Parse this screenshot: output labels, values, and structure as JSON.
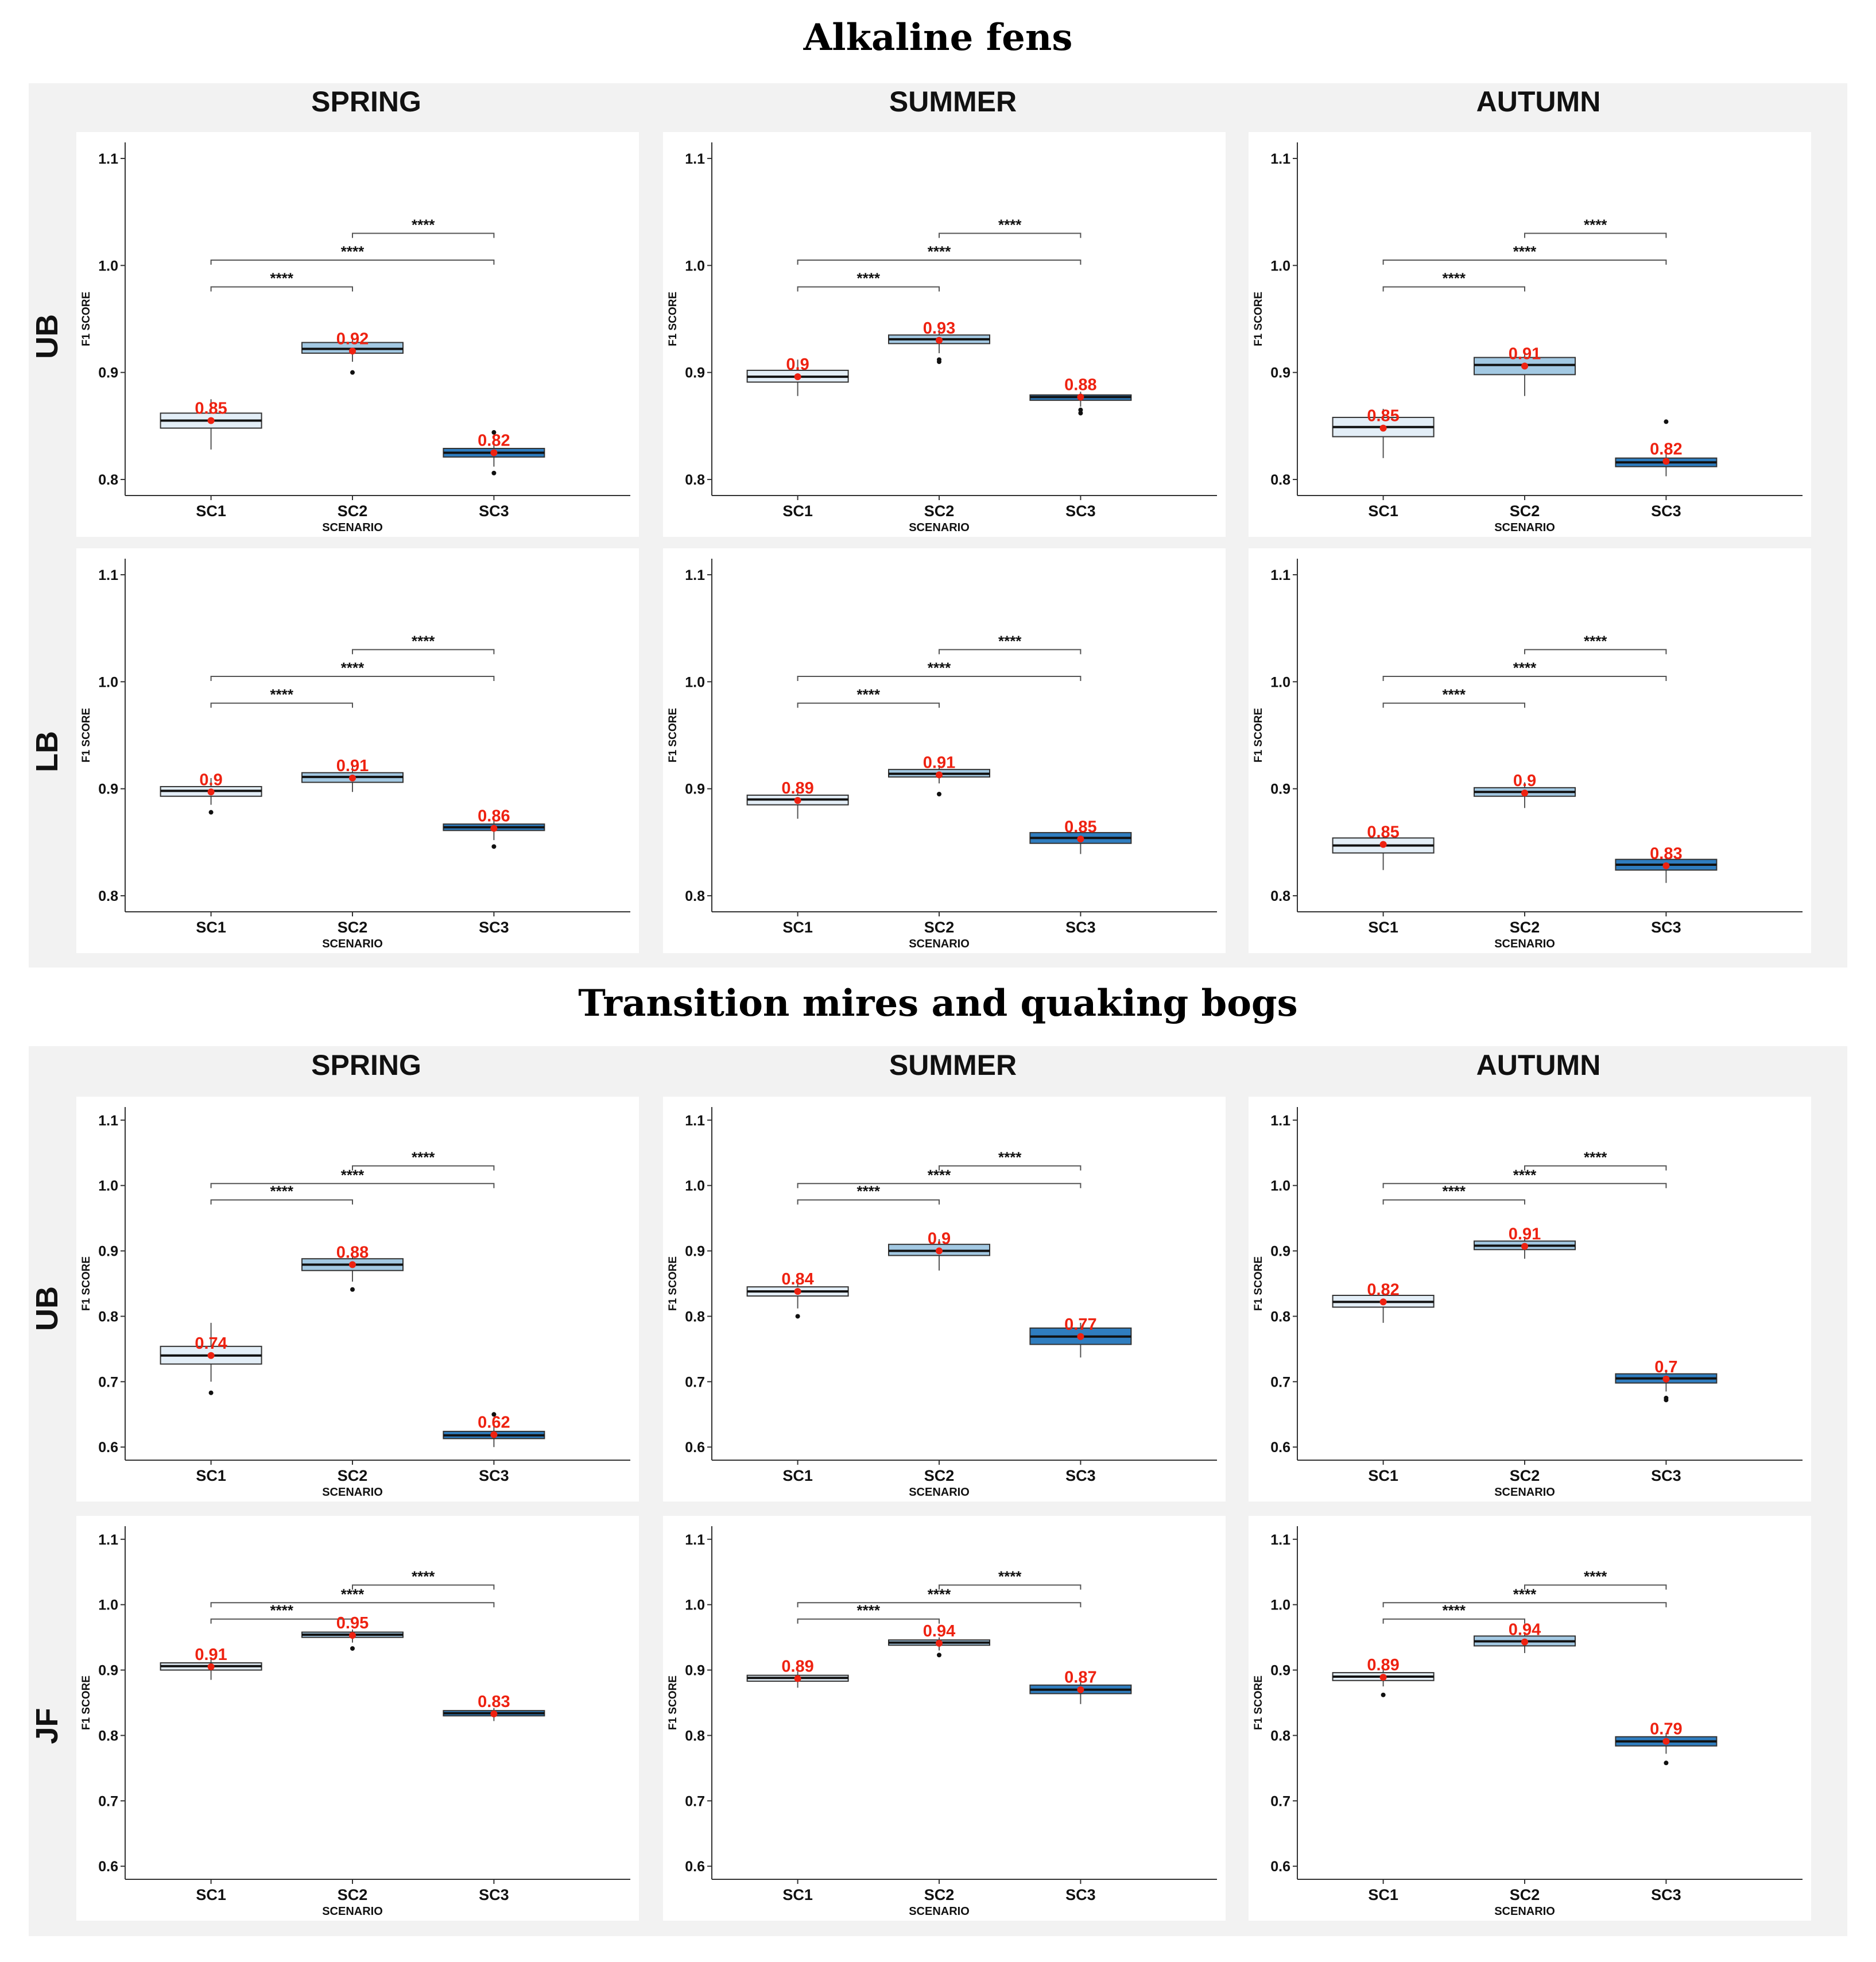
{
  "chart_data": {
    "type": "box",
    "x_label": "SCENARIO",
    "y_label": "F1 SCORE",
    "categories": [
      "SC1",
      "SC2",
      "SC3"
    ],
    "significance_label": "****",
    "box_colors": [
      "#e3eef7",
      "#a3c9e3",
      "#2f7dbf"
    ],
    "mean_color": "#ee2211",
    "sections": [
      {
        "title": "Alkaline fens",
        "seasons": [
          "SPRING",
          "SUMMER",
          "AUTUMN"
        ],
        "y_ticks": [
          "0.8",
          "0.9",
          "1.0",
          "1.1"
        ],
        "ylim": [
          0.785,
          1.115
        ],
        "rows": [
          {
            "label": "UB",
            "panels": [
              {
                "season": "SPRING",
                "means": [
                  "0.85",
                  "0.92",
                  "0.82"
                ],
                "boxes": [
                  {
                    "q1": 0.848,
                    "median": 0.855,
                    "q3": 0.862,
                    "low": 0.828,
                    "high": 0.875,
                    "mean": 0.855,
                    "outliers": []
                  },
                  {
                    "q1": 0.918,
                    "median": 0.922,
                    "q3": 0.928,
                    "low": 0.91,
                    "high": 0.932,
                    "mean": 0.92,
                    "outliers": [
                      0.9
                    ]
                  },
                  {
                    "q1": 0.821,
                    "median": 0.825,
                    "q3": 0.829,
                    "low": 0.812,
                    "high": 0.838,
                    "mean": 0.825,
                    "outliers": [
                      0.806,
                      0.844
                    ]
                  }
                ]
              },
              {
                "season": "SUMMER",
                "means": [
                  "0.9",
                  "0.93",
                  "0.88"
                ],
                "boxes": [
                  {
                    "q1": 0.891,
                    "median": 0.896,
                    "q3": 0.902,
                    "low": 0.878,
                    "high": 0.912,
                    "mean": 0.896,
                    "outliers": []
                  },
                  {
                    "q1": 0.927,
                    "median": 0.931,
                    "q3": 0.935,
                    "low": 0.918,
                    "high": 0.94,
                    "mean": 0.93,
                    "outliers": [
                      0.91,
                      0.912
                    ]
                  },
                  {
                    "q1": 0.874,
                    "median": 0.877,
                    "q3": 0.879,
                    "low": 0.868,
                    "high": 0.882,
                    "mean": 0.877,
                    "outliers": [
                      0.862,
                      0.865
                    ]
                  }
                ]
              },
              {
                "season": "AUTUMN",
                "means": [
                  "0.85",
                  "0.91",
                  "0.82"
                ],
                "boxes": [
                  {
                    "q1": 0.84,
                    "median": 0.849,
                    "q3": 0.858,
                    "low": 0.82,
                    "high": 0.866,
                    "mean": 0.848,
                    "outliers": []
                  },
                  {
                    "q1": 0.898,
                    "median": 0.907,
                    "q3": 0.914,
                    "low": 0.878,
                    "high": 0.92,
                    "mean": 0.906,
                    "outliers": []
                  },
                  {
                    "q1": 0.812,
                    "median": 0.816,
                    "q3": 0.82,
                    "low": 0.803,
                    "high": 0.825,
                    "mean": 0.817,
                    "outliers": [
                      0.854
                    ]
                  }
                ]
              }
            ]
          },
          {
            "label": "LB",
            "panels": [
              {
                "season": "SPRING",
                "means": [
                  "0.9",
                  "0.91",
                  "0.86"
                ],
                "boxes": [
                  {
                    "q1": 0.893,
                    "median": 0.898,
                    "q3": 0.902,
                    "low": 0.885,
                    "high": 0.91,
                    "mean": 0.897,
                    "outliers": [
                      0.878
                    ]
                  },
                  {
                    "q1": 0.906,
                    "median": 0.911,
                    "q3": 0.915,
                    "low": 0.897,
                    "high": 0.922,
                    "mean": 0.91,
                    "outliers": []
                  },
                  {
                    "q1": 0.861,
                    "median": 0.864,
                    "q3": 0.867,
                    "low": 0.852,
                    "high": 0.872,
                    "mean": 0.863,
                    "outliers": [
                      0.846
                    ]
                  }
                ]
              },
              {
                "season": "SUMMER",
                "means": [
                  "0.89",
                  "0.91",
                  "0.85"
                ],
                "boxes": [
                  {
                    "q1": 0.885,
                    "median": 0.89,
                    "q3": 0.894,
                    "low": 0.872,
                    "high": 0.9,
                    "mean": 0.889,
                    "outliers": []
                  },
                  {
                    "q1": 0.911,
                    "median": 0.914,
                    "q3": 0.918,
                    "low": 0.905,
                    "high": 0.922,
                    "mean": 0.913,
                    "outliers": [
                      0.895
                    ]
                  },
                  {
                    "q1": 0.849,
                    "median": 0.854,
                    "q3": 0.859,
                    "low": 0.839,
                    "high": 0.864,
                    "mean": 0.853,
                    "outliers": []
                  }
                ]
              },
              {
                "season": "AUTUMN",
                "means": [
                  "0.85",
                  "0.9",
                  "0.83"
                ],
                "boxes": [
                  {
                    "q1": 0.84,
                    "median": 0.847,
                    "q3": 0.854,
                    "low": 0.824,
                    "high": 0.862,
                    "mean": 0.848,
                    "outliers": []
                  },
                  {
                    "q1": 0.893,
                    "median": 0.897,
                    "q3": 0.901,
                    "low": 0.882,
                    "high": 0.906,
                    "mean": 0.896,
                    "outliers": []
                  },
                  {
                    "q1": 0.824,
                    "median": 0.829,
                    "q3": 0.834,
                    "low": 0.812,
                    "high": 0.838,
                    "mean": 0.828,
                    "outliers": []
                  }
                ]
              }
            ]
          }
        ]
      },
      {
        "title": "Transition mires and quaking bogs",
        "seasons": [
          "SPRING",
          "SUMMER",
          "AUTUMN"
        ],
        "y_ticks": [
          "0.6",
          "0.7",
          "0.8",
          "0.9",
          "1.0",
          "1.1"
        ],
        "ylim": [
          0.58,
          1.12
        ],
        "rows": [
          {
            "label": "UB",
            "panels": [
              {
                "season": "SPRING",
                "means": [
                  "0.74",
                  "0.88",
                  "0.62"
                ],
                "boxes": [
                  {
                    "q1": 0.727,
                    "median": 0.74,
                    "q3": 0.754,
                    "low": 0.7,
                    "high": 0.79,
                    "mean": 0.74,
                    "outliers": [
                      0.683
                    ]
                  },
                  {
                    "q1": 0.87,
                    "median": 0.879,
                    "q3": 0.888,
                    "low": 0.853,
                    "high": 0.895,
                    "mean": 0.879,
                    "outliers": [
                      0.841
                    ]
                  },
                  {
                    "q1": 0.613,
                    "median": 0.618,
                    "q3": 0.624,
                    "low": 0.6,
                    "high": 0.632,
                    "mean": 0.619,
                    "outliers": [
                      0.65
                    ]
                  }
                ]
              },
              {
                "season": "SUMMER",
                "means": [
                  "0.84",
                  "0.9",
                  "0.77"
                ],
                "boxes": [
                  {
                    "q1": 0.831,
                    "median": 0.838,
                    "q3": 0.845,
                    "low": 0.812,
                    "high": 0.853,
                    "mean": 0.838,
                    "outliers": [
                      0.8
                    ]
                  },
                  {
                    "q1": 0.893,
                    "median": 0.9,
                    "q3": 0.91,
                    "low": 0.87,
                    "high": 0.918,
                    "mean": 0.9,
                    "outliers": []
                  },
                  {
                    "q1": 0.757,
                    "median": 0.769,
                    "q3": 0.782,
                    "low": 0.737,
                    "high": 0.79,
                    "mean": 0.769,
                    "outliers": []
                  }
                ]
              },
              {
                "season": "AUTUMN",
                "means": [
                  "0.82",
                  "0.91",
                  "0.7"
                ],
                "boxes": [
                  {
                    "q1": 0.814,
                    "median": 0.822,
                    "q3": 0.832,
                    "low": 0.79,
                    "high": 0.842,
                    "mean": 0.822,
                    "outliers": []
                  },
                  {
                    "q1": 0.902,
                    "median": 0.908,
                    "q3": 0.915,
                    "low": 0.888,
                    "high": 0.92,
                    "mean": 0.907,
                    "outliers": []
                  },
                  {
                    "q1": 0.698,
                    "median": 0.705,
                    "q3": 0.712,
                    "low": 0.685,
                    "high": 0.718,
                    "mean": 0.704,
                    "outliers": [
                      0.672,
                      0.675
                    ]
                  }
                ]
              }
            ]
          },
          {
            "label": "JF",
            "panels": [
              {
                "season": "SPRING",
                "means": [
                  "0.91",
                  "0.95",
                  "0.83"
                ],
                "boxes": [
                  {
                    "q1": 0.9,
                    "median": 0.906,
                    "q3": 0.911,
                    "low": 0.885,
                    "high": 0.918,
                    "mean": 0.905,
                    "outliers": []
                  },
                  {
                    "q1": 0.95,
                    "median": 0.954,
                    "q3": 0.958,
                    "low": 0.942,
                    "high": 0.962,
                    "mean": 0.953,
                    "outliers": [
                      0.933
                    ]
                  },
                  {
                    "q1": 0.83,
                    "median": 0.834,
                    "q3": 0.838,
                    "low": 0.822,
                    "high": 0.842,
                    "mean": 0.833,
                    "outliers": []
                  }
                ]
              },
              {
                "season": "SUMMER",
                "means": [
                  "0.89",
                  "0.94",
                  "0.87"
                ],
                "boxes": [
                  {
                    "q1": 0.883,
                    "median": 0.888,
                    "q3": 0.892,
                    "low": 0.873,
                    "high": 0.898,
                    "mean": 0.887,
                    "outliers": []
                  },
                  {
                    "q1": 0.938,
                    "median": 0.942,
                    "q3": 0.946,
                    "low": 0.93,
                    "high": 0.95,
                    "mean": 0.941,
                    "outliers": [
                      0.923
                    ]
                  },
                  {
                    "q1": 0.864,
                    "median": 0.87,
                    "q3": 0.877,
                    "low": 0.848,
                    "high": 0.882,
                    "mean": 0.87,
                    "outliers": []
                  }
                ]
              },
              {
                "season": "AUTUMN",
                "means": [
                  "0.89",
                  "0.94",
                  "0.79"
                ],
                "boxes": [
                  {
                    "q1": 0.884,
                    "median": 0.89,
                    "q3": 0.896,
                    "low": 0.875,
                    "high": 0.902,
                    "mean": 0.889,
                    "outliers": [
                      0.862
                    ]
                  },
                  {
                    "q1": 0.937,
                    "median": 0.944,
                    "q3": 0.952,
                    "low": 0.926,
                    "high": 0.958,
                    "mean": 0.943,
                    "outliers": []
                  },
                  {
                    "q1": 0.784,
                    "median": 0.791,
                    "q3": 0.798,
                    "low": 0.772,
                    "high": 0.804,
                    "mean": 0.791,
                    "outliers": [
                      0.758
                    ]
                  }
                ]
              }
            ]
          }
        ]
      }
    ]
  }
}
